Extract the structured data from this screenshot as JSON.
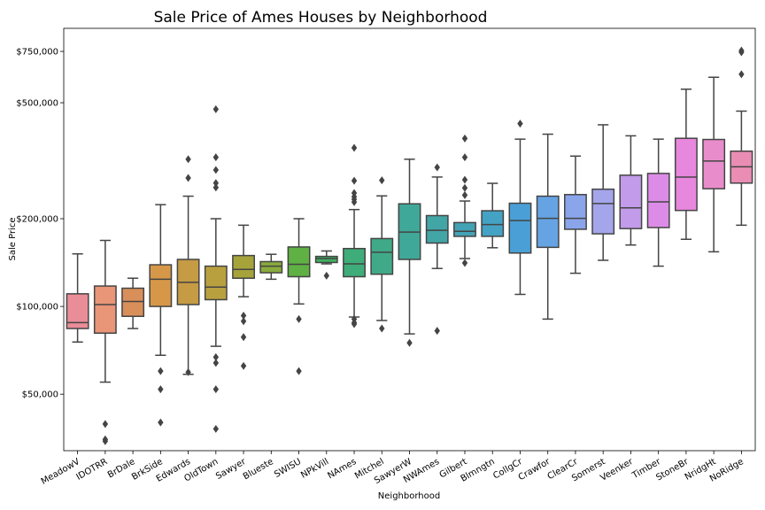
{
  "chart_data": {
    "type": "box",
    "title": "Sale Price of Ames Houses by Neighborhood",
    "xlabel": "Neighborhood",
    "ylabel": "Sale Price",
    "yscale": "log",
    "ylim": [
      32000,
      900000
    ],
    "yticks": [
      {
        "value": 50000,
        "label": "$50,000"
      },
      {
        "value": 100000,
        "label": "$100,000"
      },
      {
        "value": 200000,
        "label": "$200,000"
      },
      {
        "value": 500000,
        "label": "$500,000"
      },
      {
        "value": 750000,
        "label": "$750,000"
      }
    ],
    "grid": false,
    "boxes": [
      {
        "name": "MeadowV",
        "color": "#e98d98",
        "whislo": 75500,
        "q1": 84000,
        "med": 88000,
        "q3": 110500,
        "whishi": 151500,
        "fliers": []
      },
      {
        "name": "IDOTRR",
        "color": "#e99578",
        "whislo": 55000,
        "q1": 81000,
        "med": 101500,
        "q3": 117500,
        "whishi": 168500,
        "fliers": [
          39500,
          35000,
          34500
        ]
      },
      {
        "name": "BrDale",
        "color": "#d98f5a",
        "whislo": 84000,
        "q1": 92500,
        "med": 104000,
        "q3": 115500,
        "whishi": 125000,
        "fliers": []
      },
      {
        "name": "BrkSide",
        "color": "#d69848",
        "whislo": 68000,
        "q1": 100000,
        "med": 124000,
        "q3": 139000,
        "whishi": 223500,
        "fliers": [
          60000,
          52000,
          40000
        ]
      },
      {
        "name": "Edwards",
        "color": "#c59b44",
        "whislo": 58500,
        "q1": 101500,
        "med": 121000,
        "q3": 145000,
        "whishi": 239000,
        "fliers": [
          59500,
          320000,
          276000
        ]
      },
      {
        "name": "OldTown",
        "color": "#b9a03f",
        "whislo": 73000,
        "q1": 105500,
        "med": 116500,
        "q3": 137500,
        "whishi": 200000,
        "fliers": [
          67000,
          64000,
          52000,
          38000,
          475000,
          325000,
          294000,
          265000,
          256000
        ]
      },
      {
        "name": "Sawyer",
        "color": "#a6a33b",
        "whislo": 108000,
        "q1": 125000,
        "med": 134000,
        "q3": 149500,
        "whishi": 190000,
        "fliers": [
          93000,
          89000,
          78500,
          62500
        ]
      },
      {
        "name": "Blueste",
        "color": "#89ab3c",
        "whislo": 124000,
        "q1": 130500,
        "med": 137500,
        "q3": 142500,
        "whishi": 151000,
        "fliers": []
      },
      {
        "name": "SWISU",
        "color": "#5fb143",
        "whislo": 102000,
        "q1": 126500,
        "med": 139500,
        "q3": 160000,
        "whishi": 200000,
        "fliers": [
          90500,
          60000
        ]
      },
      {
        "name": "NPkVill",
        "color": "#3fb162",
        "whislo": 140000,
        "q1": 141500,
        "med": 146000,
        "q3": 148500,
        "whishi": 155000,
        "fliers": [
          127500
        ]
      },
      {
        "name": "NAmes",
        "color": "#3fad79",
        "whislo": 92000,
        "q1": 126500,
        "med": 140000,
        "q3": 158000,
        "whishi": 215000,
        "fliers": [
          90500,
          88000,
          87000,
          350000,
          270000,
          245000,
          238000,
          233000,
          228000
        ]
      },
      {
        "name": "Mitchel",
        "color": "#40aa88",
        "whislo": 89500,
        "q1": 129000,
        "med": 153500,
        "q3": 171000,
        "whishi": 239500,
        "fliers": [
          84000,
          271000
        ]
      },
      {
        "name": "SawyerW",
        "color": "#40a898",
        "whislo": 80500,
        "q1": 145000,
        "med": 180000,
        "q3": 225000,
        "whishi": 320000,
        "fliers": [
          75000
        ]
      },
      {
        "name": "NWAmes",
        "color": "#42a5a6",
        "whislo": 135000,
        "q1": 165000,
        "med": 182500,
        "q3": 205000,
        "whishi": 278000,
        "fliers": [
          82500,
          300000
        ]
      },
      {
        "name": "Gilbert",
        "color": "#43a3b5",
        "whislo": 146000,
        "q1": 174000,
        "med": 181000,
        "q3": 194000,
        "whishi": 230000,
        "fliers": [
          141000,
          377000,
          325000,
          272000,
          255000,
          241000
        ]
      },
      {
        "name": "Blmngtn",
        "color": "#44a2c4",
        "whislo": 159000,
        "q1": 174000,
        "med": 191000,
        "q3": 213000,
        "whishi": 264500,
        "fliers": []
      },
      {
        "name": "CollgCr",
        "color": "#4aa0d6",
        "whislo": 110000,
        "q1": 152500,
        "med": 197000,
        "q3": 226000,
        "whishi": 375000,
        "fliers": [
          424000
        ]
      },
      {
        "name": "Crawfor",
        "color": "#65a3e3",
        "whislo": 90500,
        "q1": 159500,
        "med": 200500,
        "q3": 239000,
        "whishi": 390000,
        "fliers": []
      },
      {
        "name": "ClearCr",
        "color": "#8aa5ea",
        "whislo": 130000,
        "q1": 184000,
        "med": 200500,
        "q3": 242000,
        "whishi": 328000,
        "fliers": []
      },
      {
        "name": "Somerst",
        "color": "#a4a5ea",
        "whislo": 144000,
        "q1": 177500,
        "med": 225500,
        "q3": 252500,
        "whishi": 420000,
        "fliers": []
      },
      {
        "name": "Veenker",
        "color": "#c29bea",
        "whislo": 162500,
        "q1": 185000,
        "med": 218000,
        "q3": 282000,
        "whishi": 385000,
        "fliers": []
      },
      {
        "name": "Timber",
        "color": "#dc8ce7",
        "whislo": 137500,
        "q1": 186500,
        "med": 228500,
        "q3": 286000,
        "whishi": 375000,
        "fliers": []
      },
      {
        "name": "StoneBr",
        "color": "#e887de",
        "whislo": 170000,
        "q1": 213500,
        "med": 278000,
        "q3": 377500,
        "whishi": 556500,
        "fliers": []
      },
      {
        "name": "NridgHt",
        "color": "#e98ccc",
        "whislo": 154000,
        "q1": 253500,
        "med": 315500,
        "q3": 374000,
        "whishi": 611500,
        "fliers": []
      },
      {
        "name": "NoRidge",
        "color": "#ea8db5",
        "whislo": 190000,
        "q1": 265000,
        "med": 301500,
        "q3": 341000,
        "whishi": 468000,
        "fliers": [
          626000,
          745000,
          755000
        ]
      }
    ]
  }
}
